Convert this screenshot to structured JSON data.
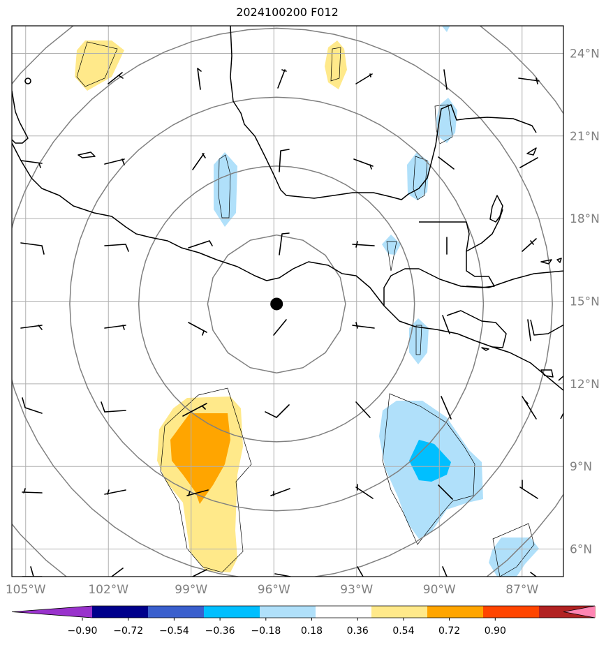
{
  "title": "2024100200 F012",
  "map": {
    "lon_range": [
      -105.5,
      -85.5
    ],
    "lat_range": [
      5,
      25
    ],
    "center": {
      "lon": -95.9,
      "lat": 14.9
    },
    "range_rings_deg": [
      2.5,
      5,
      7.5,
      10,
      12.5
    ],
    "lon_ticks": [
      {
        "lon": -105,
        "label": "105°W"
      },
      {
        "lon": -102,
        "label": "102°W"
      },
      {
        "lon": -99,
        "label": "99°W"
      },
      {
        "lon": -96,
        "label": "96°W"
      },
      {
        "lon": -93,
        "label": "93°W"
      },
      {
        "lon": -90,
        "label": "90°W"
      },
      {
        "lon": -87,
        "label": "87°W"
      }
    ],
    "lat_ticks": [
      {
        "lat": 24,
        "label": "24°N"
      },
      {
        "lat": 21,
        "label": "21°N"
      },
      {
        "lat": 18,
        "label": "18°N"
      },
      {
        "lat": 15,
        "label": "15°N"
      },
      {
        "lat": 12,
        "label": "12°N"
      },
      {
        "lat": 9,
        "label": "9°N"
      },
      {
        "lat": 6,
        "label": "6°N"
      }
    ],
    "colors": {
      "coast": "#000000",
      "grid": "#b0b0b0",
      "ring": "#808080",
      "center_marker": "#000000"
    }
  },
  "colorbar": {
    "colors": [
      "#9932cc",
      "#00008b",
      "#3a5fcd",
      "#00bfff",
      "#b0e0fa",
      "#ffffff",
      "#ffe98a",
      "#ffa500",
      "#ff4500",
      "#b22222",
      "#ff85b3"
    ],
    "tick_labels": [
      "−0.90",
      "−0.72",
      "−0.54",
      "−0.36",
      "−0.18",
      "0.18",
      "0.36",
      "0.54",
      "0.72",
      "0.90"
    ]
  }
}
